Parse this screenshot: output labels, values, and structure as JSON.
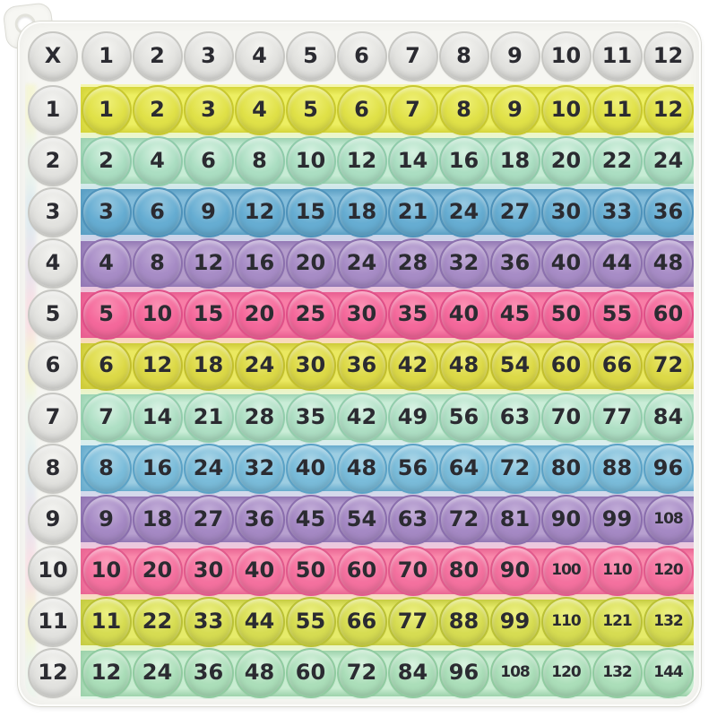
{
  "product": {
    "kind": "pop-it multiplication table fidget board",
    "operator_symbol": "X"
  },
  "table": {
    "corner_label": "X",
    "column_headers": [
      "1",
      "2",
      "3",
      "4",
      "5",
      "6",
      "7",
      "8",
      "9",
      "10",
      "11",
      "12"
    ],
    "rows": [
      {
        "header": "1",
        "color": "yellow1",
        "values": [
          "1",
          "2",
          "3",
          "4",
          "5",
          "6",
          "7",
          "8",
          "9",
          "10",
          "11",
          "12"
        ]
      },
      {
        "header": "2",
        "color": "mint1",
        "values": [
          "2",
          "4",
          "6",
          "8",
          "10",
          "12",
          "14",
          "16",
          "18",
          "20",
          "22",
          "24"
        ]
      },
      {
        "header": "3",
        "color": "blue1",
        "values": [
          "3",
          "6",
          "9",
          "12",
          "15",
          "18",
          "21",
          "24",
          "27",
          "30",
          "33",
          "36"
        ]
      },
      {
        "header": "4",
        "color": "purple1",
        "values": [
          "4",
          "8",
          "12",
          "16",
          "20",
          "24",
          "28",
          "32",
          "36",
          "40",
          "44",
          "48"
        ]
      },
      {
        "header": "5",
        "color": "pink1",
        "values": [
          "5",
          "10",
          "15",
          "20",
          "25",
          "30",
          "35",
          "40",
          "45",
          "50",
          "55",
          "60"
        ]
      },
      {
        "header": "6",
        "color": "yellow2",
        "values": [
          "6",
          "12",
          "18",
          "24",
          "30",
          "36",
          "42",
          "48",
          "54",
          "60",
          "66",
          "72"
        ]
      },
      {
        "header": "7",
        "color": "mint2",
        "values": [
          "7",
          "14",
          "21",
          "28",
          "35",
          "42",
          "49",
          "56",
          "63",
          "70",
          "77",
          "84"
        ]
      },
      {
        "header": "8",
        "color": "blue2",
        "values": [
          "8",
          "16",
          "24",
          "32",
          "40",
          "48",
          "56",
          "64",
          "72",
          "80",
          "88",
          "96"
        ]
      },
      {
        "header": "9",
        "color": "purple2",
        "values": [
          "9",
          "18",
          "27",
          "36",
          "45",
          "54",
          "63",
          "72",
          "81",
          "90",
          "99",
          "108"
        ]
      },
      {
        "header": "10",
        "color": "pink2",
        "values": [
          "10",
          "20",
          "30",
          "40",
          "50",
          "60",
          "70",
          "80",
          "90",
          "100",
          "110",
          "120"
        ]
      },
      {
        "header": "11",
        "color": "lime",
        "values": [
          "11",
          "22",
          "33",
          "44",
          "55",
          "66",
          "77",
          "88",
          "99",
          "110",
          "121",
          "132"
        ]
      },
      {
        "header": "12",
        "color": "mint3",
        "values": [
          "12",
          "24",
          "36",
          "48",
          "60",
          "72",
          "84",
          "96",
          "108",
          "120",
          "132",
          "144"
        ]
      }
    ]
  },
  "palette": {
    "header": {
      "band": "#f5f5f1",
      "bubble": "#e2e2df",
      "hl": "#f4f4f1",
      "rim": "#c7c7c3",
      "deep": "#cfcfcb",
      "pale": "#f5f5f1"
    },
    "yellow1": {
      "band": "#edef62",
      "bubble": "#e0e148",
      "hl": "#eff077",
      "rim": "#c8c82e",
      "deep": "#d5d53a",
      "pale": "#f5f6ad"
    },
    "mint1": {
      "band": "#c7ecd5",
      "bubble": "#abdec2",
      "hl": "#d9f3e3",
      "rim": "#8fcbaa",
      "deep": "#9cd2b2",
      "pale": "#e2f5e9"
    },
    "blue1": {
      "band": "#83bcda",
      "bubble": "#66add2",
      "hl": "#98c9e1",
      "rim": "#4e92ba",
      "deep": "#5a9fc4",
      "pale": "#c0dcec"
    },
    "purple1": {
      "band": "#b39cca",
      "bubble": "#a78cc6",
      "hl": "#c2add7",
      "rim": "#8b70ad",
      "deep": "#9378b5",
      "pale": "#d9cbe6"
    },
    "pink1": {
      "band": "#f87da6",
      "bubble": "#f4689b",
      "hl": "#fa92b4",
      "rim": "#df5088",
      "deep": "#e85d90",
      "pale": "#fcc0d2"
    },
    "yellow2": {
      "band": "#eae860",
      "bubble": "#dcd947",
      "hl": "#eeec7b",
      "rim": "#c2bf2d",
      "deep": "#cecb38",
      "pale": "#f4f3a8"
    },
    "mint2": {
      "band": "#c9edd7",
      "bubble": "#aedfc4",
      "hl": "#daf3e5",
      "rim": "#92cdac",
      "deep": "#9ed4b4",
      "pale": "#e3f6ea"
    },
    "blue2": {
      "band": "#9ccde2",
      "bubble": "#7abcda",
      "hl": "#aad5e7",
      "rim": "#5ba2c6",
      "deep": "#68accd",
      "pale": "#cde5f0"
    },
    "purple2": {
      "band": "#b7a0cf",
      "bubble": "#a589c4",
      "hl": "#c4afd9",
      "rim": "#8a6ead",
      "deep": "#9276b4",
      "pale": "#dbcde7"
    },
    "pink2": {
      "band": "#f989ab",
      "bubble": "#f4719f",
      "hl": "#fb9cba",
      "rim": "#e15a8c",
      "deep": "#ea6694",
      "pale": "#fcc3d5"
    },
    "lime": {
      "band": "#e6eb6a",
      "bubble": "#d6dc52",
      "hl": "#edf184",
      "rim": "#bac136",
      "deep": "#c6cc42",
      "pale": "#f2f5ae"
    },
    "mint3": {
      "band": "#c8edd1",
      "bubble": "#abdeb9",
      "hl": "#daf3e0",
      "rim": "#90cba0",
      "deep": "#9dd2ab",
      "pale": "#e3f6e8"
    }
  },
  "frame": {
    "silicone_color": "#f6f6f2",
    "edge_color": "#d9d9d2",
    "text_color": "#2b2b31"
  }
}
